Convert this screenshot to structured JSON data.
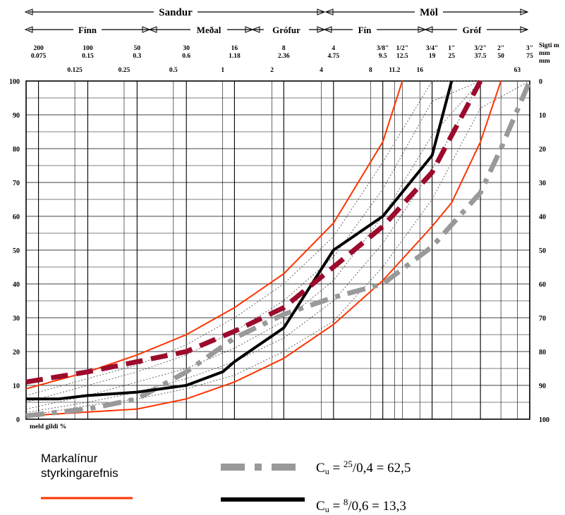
{
  "header": {
    "group_left": "Sandur",
    "group_right": "Möl",
    "subgroups": [
      "Fínn",
      "Meðal",
      "Grófur",
      "Fín",
      "Gróf"
    ]
  },
  "tick_rows": {
    "sieve_no": [
      "200",
      "100",
      "50",
      "30",
      "16",
      "8",
      "4",
      "3/8\"",
      "1/2\"",
      "3/4\"",
      "1\"",
      "3/2\"",
      "2\"",
      "3\""
    ],
    "mm_top": [
      "0.075",
      "0.15",
      "0.3",
      "0.6",
      "1.18",
      "2.36",
      "4.75",
      "9.5",
      "12.5",
      "19",
      "25",
      "37.5",
      "50",
      "75"
    ],
    "mm_bottom": [
      "0.125",
      "0.25",
      "0.5",
      "1",
      "2",
      "4",
      "8",
      "11.2",
      "16",
      "63"
    ]
  },
  "axis_right_title": [
    "Sigti m",
    "mm",
    "mm"
  ],
  "left_ticks": [
    "100",
    "90",
    "80",
    "70",
    "60",
    "50",
    "40",
    "30",
    "20",
    "10",
    "0"
  ],
  "right_ticks": [
    "0",
    "10",
    "20",
    "30",
    "40",
    "50",
    "60",
    "70",
    "80",
    "90",
    "100"
  ],
  "bottom_note": "meld gildi %",
  "legend": {
    "spec_label_line1": "Markalínur",
    "spec_label_line2": "styrkingarefnis",
    "cu1_label": "C",
    "cu1_sub": "u",
    "cu1_eq": " = ",
    "cu1_num": "25",
    "cu1_rest": "/0,4 = 62,5",
    "cu2_label": "C",
    "cu2_sub": "u",
    "cu2_eq": " = ",
    "cu2_num": "8",
    "cu2_rest": "/0,6  = 13,3"
  },
  "colors": {
    "spec": "#ff3300",
    "black_curve": "#000000",
    "gray_curve": "#999999",
    "maroon_curve": "#9c0b2c",
    "guide": "#555555"
  },
  "chart_data": {
    "type": "line",
    "x_scale": "log",
    "x_unit": "mm",
    "xlim": [
      0.063,
      75
    ],
    "ylim": [
      0,
      100
    ],
    "ylabel_left": "",
    "ylabel_right": "",
    "grid": true,
    "series": [
      {
        "style": "spec_limit",
        "x": [
          0.063,
          0.15,
          0.3,
          0.6,
          1.18,
          2.36,
          4.75,
          9.5,
          12.5
        ],
        "y": [
          9,
          14,
          19,
          25,
          33,
          43,
          58,
          82,
          100
        ]
      },
      {
        "style": "spec_limit",
        "x": [
          0.063,
          0.3,
          0.6,
          1.18,
          2.36,
          4.75,
          9.5,
          19,
          25,
          37.5,
          50
        ],
        "y": [
          1,
          3,
          6,
          11,
          18,
          28,
          41,
          57,
          64,
          82,
          100
        ]
      },
      {
        "name": "Cu = 25/0,4 = 62,5",
        "style": "gray_dash_dot",
        "x": [
          0.063,
          0.15,
          0.3,
          0.6,
          1.18,
          2.36,
          4.75,
          9.5,
          19,
          37.5,
          50,
          75
        ],
        "y": [
          1,
          3,
          6,
          14,
          24,
          31,
          36,
          40,
          51,
          67,
          80,
          100
        ]
      },
      {
        "name": "Cu = 8/0,6 = 13,3",
        "style": "black_solid",
        "x": [
          0.063,
          0.1,
          0.15,
          0.3,
          0.6,
          1.0,
          1.18,
          2.36,
          4.75,
          9.5,
          19,
          25
        ],
        "y": [
          6,
          6,
          7,
          8,
          10,
          14,
          17,
          27,
          50,
          60,
          78,
          100
        ]
      },
      {
        "style": "maroon_dash",
        "x": [
          0.063,
          0.15,
          0.3,
          0.6,
          1.18,
          2.36,
          4.75,
          9.5,
          19,
          37.5
        ],
        "y": [
          11,
          14,
          17,
          20,
          26,
          33,
          45,
          57,
          73,
          100
        ]
      }
    ]
  }
}
